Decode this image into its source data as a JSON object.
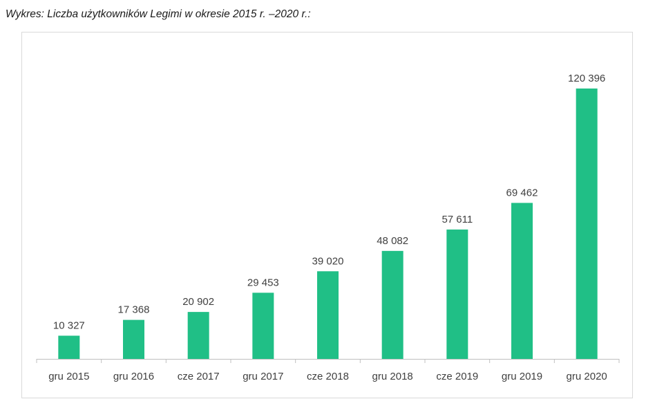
{
  "caption": "Wykres: Liczba użytkowników Legimi w okresie 2015 r. –2020 r.:",
  "colors": {
    "bar": "#20bf86",
    "text": "#404040",
    "axis": "#bfbfbf"
  },
  "chart_data": {
    "type": "bar",
    "categories": [
      "gru 2015",
      "gru 2016",
      "cze 2017",
      "gru 2017",
      "cze 2018",
      "gru 2018",
      "cze 2019",
      "gru 2019",
      "gru 2020"
    ],
    "values": [
      10327,
      17368,
      20902,
      29453,
      39020,
      48082,
      57611,
      69462,
      120396
    ],
    "value_labels": [
      "10 327",
      "17 368",
      "20 902",
      "29 453",
      "39 020",
      "48 082",
      "57 611",
      "69 462",
      "120 396"
    ],
    "title": "",
    "xlabel": "",
    "ylabel": "",
    "ylim": [
      0,
      130000
    ],
    "grid": false,
    "legend": "none"
  }
}
